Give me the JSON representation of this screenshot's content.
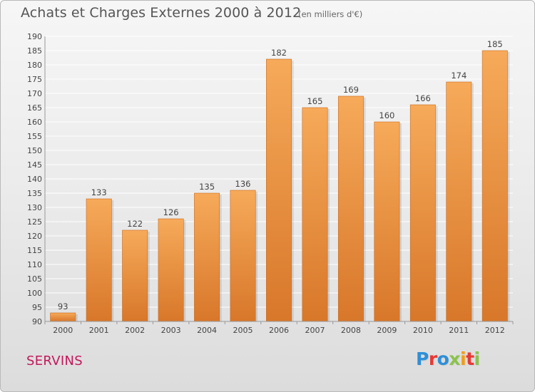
{
  "header": {
    "title": "Achats et Charges Externes 2000 à 2012",
    "subtitle": "(en milliers d'€)"
  },
  "footer": {
    "commune": "SERVINS",
    "logo_text": "Proxiti",
    "logo_colors": [
      "#2e8fd8",
      "#e53935",
      "#2e8fd8",
      "#8bc34a",
      "#f39c12",
      "#e53935",
      "#8bc34a"
    ]
  },
  "colors": {
    "bar_light": "#f6aa5a",
    "bar_dark": "#d8772a",
    "grid": "#ffffff",
    "axis": "#999999"
  },
  "chart_data": {
    "type": "bar",
    "title": "Achats et Charges Externes 2000 à 2012",
    "subtitle": "(en milliers d'€)",
    "categories": [
      "2000",
      "2001",
      "2002",
      "2003",
      "2004",
      "2005",
      "2006",
      "2007",
      "2008",
      "2009",
      "2010",
      "2011",
      "2012"
    ],
    "values": [
      93,
      133,
      122,
      126,
      135,
      136,
      182,
      165,
      169,
      160,
      166,
      174,
      185
    ],
    "ylim": [
      90,
      190
    ],
    "yticks": [
      90,
      95,
      100,
      105,
      110,
      115,
      120,
      125,
      130,
      135,
      140,
      145,
      150,
      155,
      160,
      165,
      170,
      175,
      180,
      185,
      190
    ],
    "xlabel": "",
    "ylabel": "",
    "grid": true,
    "data_labels": true
  }
}
